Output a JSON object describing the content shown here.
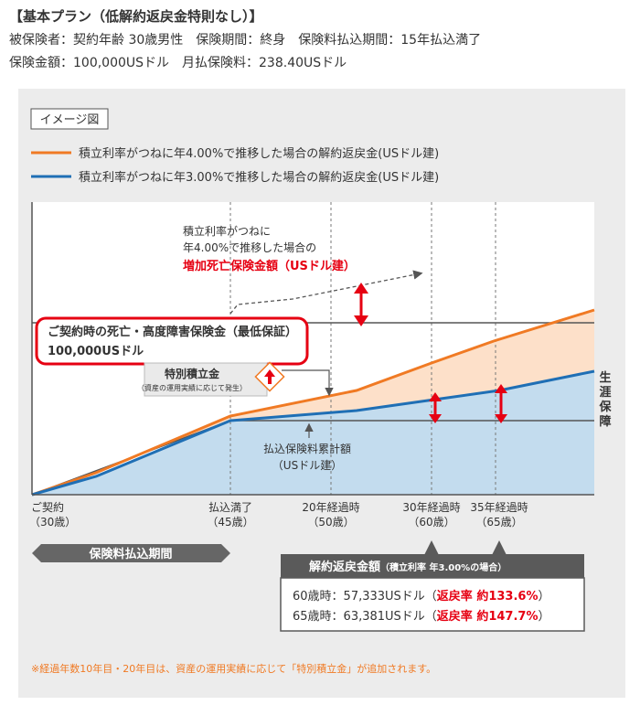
{
  "plan": {
    "title": "【基本プラン（低解約返戻金特則なし）】",
    "line1": "被保険者：契約年齢 30歳男性　保険期間：終身　保険料払込期間：15年払込満了",
    "line2": "保険金額：100,000USドル　月払保険料：238.40USドル"
  },
  "image_label": "イメージ図",
  "legend": [
    {
      "label": "積立利率がつねに年4.00%で推移した場合の解約返戻金(USドル建)",
      "color": "#f07a24"
    },
    {
      "label": "積立利率がつねに年3.00%で推移した場合の解約返戻金(USドル建)",
      "color": "#1f6fb5"
    }
  ],
  "annotations": {
    "increase_line1": "積立利率がつねに",
    "increase_line2": "年4.00%で推移した場合の",
    "increase_line3": "増加死亡保険金額（USドル建）",
    "base_box_line1": "ご契約時の死亡・高度障害保険金（最低保証）",
    "base_box_line2": "100,000USドル",
    "special_title": "特別積立金",
    "special_sub": "（資産の運用実績に応じて発生）",
    "paid_line1": "払込保険料累計額",
    "paid_line2": "（USドル建）",
    "lifetime": [
      "生",
      "涯",
      "保",
      "障"
    ]
  },
  "x_axis": [
    {
      "top": "ご契約",
      "bottom": "（30歳）"
    },
    {
      "top": "払込満了",
      "bottom": "（45歳）"
    },
    {
      "top": "20年経過時",
      "bottom": "（50歳）"
    },
    {
      "top": "30年経過時",
      "bottom": "（60歳）"
    },
    {
      "top": "35年経過時",
      "bottom": "（65歳）"
    }
  ],
  "period_label": "保険料払込期間",
  "surrender": {
    "title": "解約返戻金額",
    "title_sub": "（積立利率 年3.00%の場合）",
    "rows": [
      {
        "age": "60歳時：57,333USドル（",
        "rate": "返戻率 約133.6%",
        "close": "）"
      },
      {
        "age": "65歳時：63,381USドル（",
        "rate": "返戻率 約147.7%",
        "close": "）"
      }
    ]
  },
  "footnote": "※経過年数10年目・20年目は、資産の運用実績に応じて「特別積立金」が追加されます。",
  "colors": {
    "orange": "#f07a24",
    "blue": "#1f6fb5",
    "red": "#e60012",
    "dark": "#555555",
    "orange_fill": "#fde0c9",
    "blue_fill": "#c3dcee"
  }
}
